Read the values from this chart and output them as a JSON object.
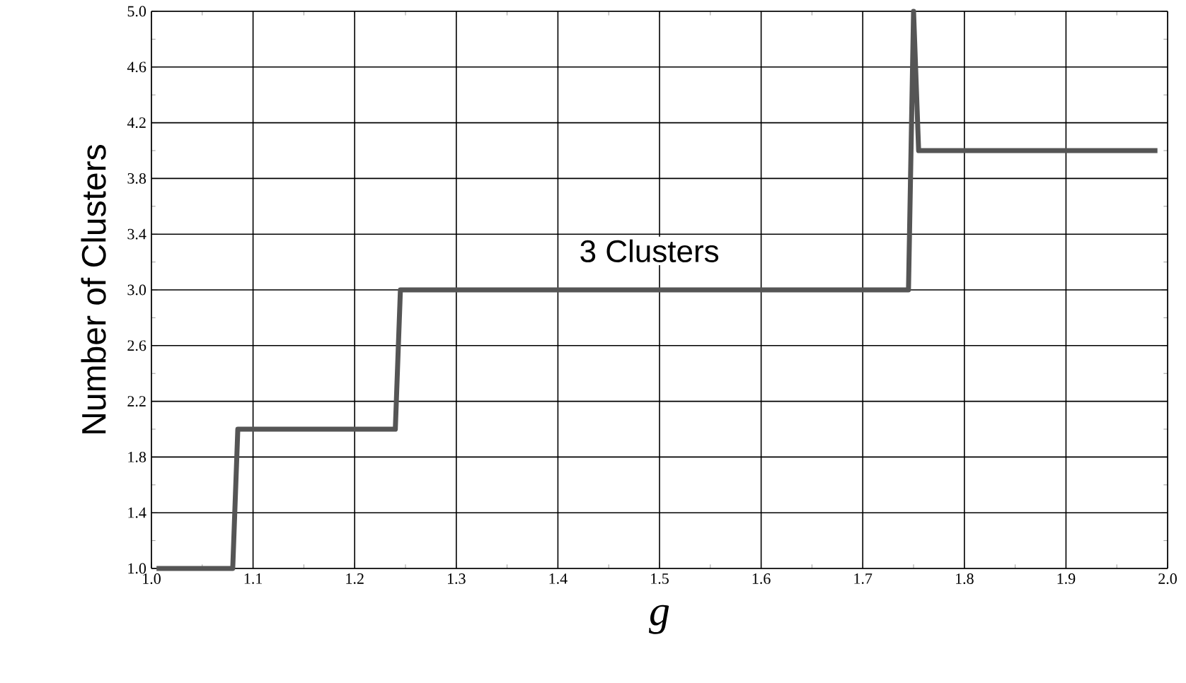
{
  "chart_data": {
    "type": "line",
    "xlabel": "g",
    "ylabel": "Number of Clusters",
    "x": [
      1.005,
      1.08,
      1.085,
      1.24,
      1.245,
      1.745,
      1.75,
      1.755,
      1.99
    ],
    "series": [
      {
        "color": "#555555",
        "values": [
          1,
          1,
          2,
          2,
          3,
          3,
          5,
          4,
          4
        ]
      }
    ],
    "xlim": [
      1.0,
      2.0
    ],
    "xticks": [
      {
        "value": 1.0,
        "label": "1.0"
      },
      1.1,
      1.2,
      1.3,
      1.4,
      1.5,
      1.6,
      1.7,
      1.8,
      1.9,
      {
        "value": 2.0,
        "label": "2.0"
      }
    ],
    "ylim": [
      1.0,
      5.0
    ],
    "yticks": [
      {
        "value": 1.0,
        "label": "1.0"
      },
      1.4,
      1.8,
      2.2,
      2.6,
      {
        "value": 3.0,
        "label": "3.0"
      },
      3.4,
      3.8,
      4.2,
      4.6,
      {
        "value": 5.0,
        "label": "5.0"
      }
    ],
    "grid": true,
    "marker": "none",
    "line_style": "solid",
    "annotations": [
      "3 Clusters"
    ]
  }
}
